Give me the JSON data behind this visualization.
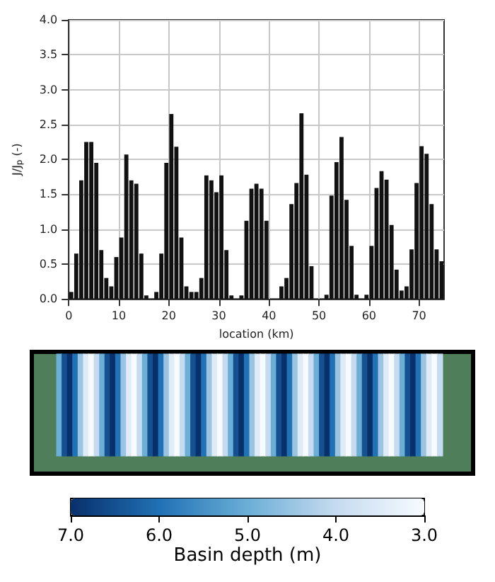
{
  "chart_data": [
    {
      "type": "bar",
      "xlabel": "location (km)",
      "ylabel": "J/J$_{p}$ (-)",
      "color": "#111111",
      "grid": true,
      "x": [
        0.5,
        1.5,
        2.5,
        3.5,
        4.5,
        5.5,
        6.5,
        7.5,
        8.5,
        9.5,
        10.5,
        11.5,
        12.5,
        13.5,
        14.5,
        15.5,
        16.5,
        17.5,
        18.5,
        19.5,
        20.5,
        21.5,
        22.5,
        23.5,
        24.5,
        25.5,
        26.5,
        27.5,
        28.5,
        29.5,
        30.5,
        31.5,
        32.5,
        33.5,
        34.5,
        35.5,
        36.5,
        37.5,
        38.5,
        39.5,
        40.5,
        41.5,
        42.5,
        43.5,
        44.5,
        45.5,
        46.5,
        47.5,
        48.5,
        49.5,
        50.5,
        51.5,
        52.5,
        53.5,
        54.5,
        55.5,
        56.5,
        57.5,
        58.5,
        59.5,
        60.5,
        61.5,
        62.5,
        63.5,
        64.5,
        65.5,
        66.5,
        67.5,
        68.5,
        69.5,
        70.5,
        71.5,
        72.5,
        73.5,
        74.5
      ],
      "values": [
        0.1,
        0.65,
        1.7,
        2.25,
        2.25,
        1.95,
        0.7,
        0.3,
        0.18,
        0.6,
        0.88,
        2.07,
        1.7,
        1.65,
        0.65,
        0.05,
        0,
        0.1,
        0.65,
        1.95,
        2.65,
        2.18,
        0.88,
        0.18,
        0.1,
        0.1,
        0.3,
        1.77,
        1.7,
        1.53,
        1.77,
        0.7,
        0.05,
        0,
        0.05,
        1.12,
        1.58,
        1.65,
        1.58,
        1.12,
        0,
        0,
        0.18,
        0.3,
        1.36,
        1.66,
        2.66,
        1.78,
        0.47,
        0,
        0,
        0.06,
        1.48,
        1.96,
        2.32,
        1.42,
        0.76,
        0.06,
        0,
        0.06,
        0.76,
        1.59,
        1.83,
        1.71,
        1.06,
        0.42,
        0.12,
        0.18,
        0.71,
        1.66,
        2.19,
        2.08,
        1.36,
        0.71,
        0.54
      ],
      "xlim": [
        0,
        75
      ],
      "xticks": [
        0,
        10,
        20,
        30,
        40,
        50,
        60,
        70
      ],
      "ylim": [
        0,
        4
      ],
      "yticks": [
        {
          "value": 0,
          "label": "0.0"
        },
        {
          "value": 0.5,
          "label": "0.5"
        },
        {
          "value": 1,
          "label": "1.0"
        },
        {
          "value": 1.5,
          "label": "1.5"
        },
        {
          "value": 2,
          "label": "2.0"
        },
        {
          "value": 2.5,
          "label": "2.5"
        },
        {
          "value": 3,
          "label": "3.0"
        },
        {
          "value": 3.5,
          "label": "3.5"
        },
        {
          "value": 4,
          "label": "4.0"
        }
      ]
    },
    {
      "type": "heatmap",
      "clabel": "Basin depth (m)",
      "tick_labels": false,
      "categories": [
        null,
        null,
        null,
        null,
        null,
        null,
        null,
        null,
        null,
        null,
        null,
        null,
        null,
        null,
        null,
        null,
        null,
        null,
        null,
        null,
        null,
        null,
        null,
        null,
        null,
        null,
        null,
        null,
        null,
        null,
        null,
        null,
        null,
        null,
        null,
        null,
        null,
        null,
        null,
        null,
        null,
        null,
        null,
        null,
        null,
        null,
        null,
        null,
        null,
        null,
        null,
        null,
        null,
        null,
        null,
        null,
        null,
        null,
        null,
        null,
        null,
        null,
        null,
        null,
        null,
        null,
        null,
        null,
        null,
        null,
        null,
        null
      ],
      "y_categories": [
        null
      ],
      "cells": [
        [
          5.0,
          6.5,
          7.0,
          6.0,
          4.5,
          3.5,
          3.0,
          4.0,
          5.0,
          6.5,
          7.0,
          6.0,
          4.5,
          3.5,
          3.0,
          4.0,
          5.0,
          6.5,
          7.0,
          6.0,
          4.5,
          3.5,
          3.0,
          4.0,
          5.0,
          6.5,
          7.0,
          6.0,
          4.5,
          3.5,
          3.0,
          4.0,
          5.0,
          6.5,
          7.0,
          6.0,
          4.5,
          3.5,
          3.0,
          4.0,
          5.0,
          6.5,
          7.0,
          6.0,
          4.5,
          3.5,
          3.0,
          4.0,
          5.0,
          6.5,
          7.0,
          6.0,
          4.5,
          3.5,
          3.0,
          4.0,
          5.0,
          6.5,
          7.0,
          6.0,
          4.5,
          3.5,
          3.0,
          4.0,
          5.0,
          6.5,
          7.0,
          6.0,
          4.5,
          3.5,
          3.0,
          4.0
        ]
      ],
      "clim": [
        7,
        3
      ],
      "cticks": [
        {
          "value": 7,
          "label": "7.0"
        },
        {
          "value": 6,
          "label": "6.0"
        },
        {
          "value": 5,
          "label": "5.0"
        },
        {
          "value": 4,
          "label": "4.0"
        },
        {
          "value": 3,
          "label": "3.0"
        }
      ]
    }
  ]
}
